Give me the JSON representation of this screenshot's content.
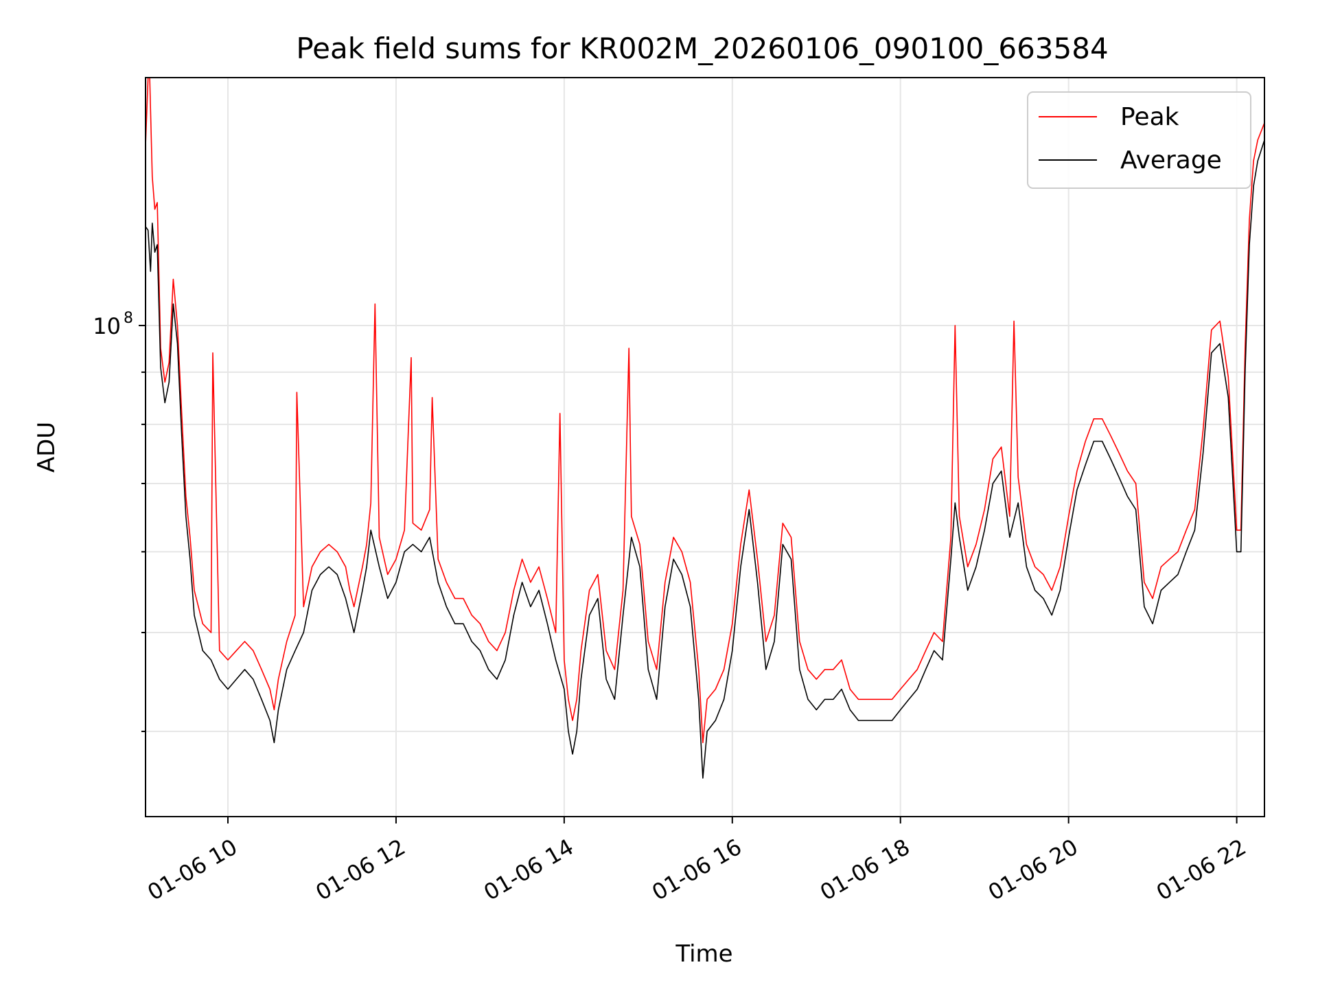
{
  "chart_data": {
    "type": "line",
    "title": "Peak field sums for KR002M_20260106_090100_663584",
    "xlabel": "Time",
    "ylabel": "ADU",
    "yscale": "log",
    "x_unit": "hours (decimal, 2026-01-06)",
    "xlim": [
      9.02,
      22.33
    ],
    "ylim": [
      33000000,
      175000000
    ],
    "x_ticks": [
      {
        "value": 10,
        "label": "01-06 10"
      },
      {
        "value": 12,
        "label": "01-06 12"
      },
      {
        "value": 14,
        "label": "01-06 14"
      },
      {
        "value": 16,
        "label": "01-06 16"
      },
      {
        "value": 18,
        "label": "01-06 18"
      },
      {
        "value": 20,
        "label": "01-06 20"
      },
      {
        "value": 22,
        "label": "01-06 22"
      }
    ],
    "y_major_ticks": [
      {
        "value": 100000000,
        "base": "10",
        "exp": "8"
      }
    ],
    "y_minor_ticks": [
      40000000,
      50000000,
      60000000,
      70000000,
      80000000,
      90000000
    ],
    "legend": {
      "position": "top-right",
      "entries": [
        "Peak",
        "Average"
      ]
    },
    "series": [
      {
        "name": "Average",
        "color": "#000000",
        "x": [
          9.02,
          9.05,
          9.08,
          9.1,
          9.13,
          9.16,
          9.2,
          9.25,
          9.3,
          9.35,
          9.4,
          9.45,
          9.5,
          9.55,
          9.6,
          9.7,
          9.8,
          9.9,
          10.0,
          10.1,
          10.2,
          10.3,
          10.4,
          10.5,
          10.55,
          10.6,
          10.7,
          10.8,
          10.9,
          11.0,
          11.1,
          11.2,
          11.3,
          11.4,
          11.45,
          11.5,
          11.6,
          11.65,
          11.7,
          11.8,
          11.9,
          12.0,
          12.1,
          12.2,
          12.3,
          12.4,
          12.5,
          12.6,
          12.7,
          12.8,
          12.9,
          13.0,
          13.1,
          13.2,
          13.3,
          13.4,
          13.5,
          13.6,
          13.7,
          13.8,
          13.9,
          14.0,
          14.05,
          14.1,
          14.15,
          14.2,
          14.3,
          14.4,
          14.5,
          14.6,
          14.7,
          14.8,
          14.9,
          15.0,
          15.1,
          15.2,
          15.3,
          15.4,
          15.5,
          15.6,
          15.65,
          15.7,
          15.8,
          15.9,
          16.0,
          16.1,
          16.2,
          16.3,
          16.4,
          16.5,
          16.6,
          16.7,
          16.8,
          16.9,
          17.0,
          17.1,
          17.2,
          17.3,
          17.4,
          17.5,
          17.6,
          17.7,
          17.8,
          17.9,
          18.0,
          18.1,
          18.2,
          18.3,
          18.4,
          18.5,
          18.6,
          18.65,
          18.7,
          18.8,
          18.9,
          19.0,
          19.1,
          19.2,
          19.3,
          19.4,
          19.5,
          19.6,
          19.7,
          19.8,
          19.9,
          20.0,
          20.1,
          20.2,
          20.3,
          20.4,
          20.5,
          20.6,
          20.7,
          20.8,
          20.9,
          21.0,
          21.1,
          21.2,
          21.3,
          21.4,
          21.5,
          21.6,
          21.7,
          21.8,
          21.9,
          22.0,
          22.05,
          22.1,
          22.15,
          22.2,
          22.25,
          22.33
        ],
        "y": [
          125000000,
          124000000,
          113000000,
          126000000,
          118000000,
          120000000,
          91000000,
          84000000,
          88000000,
          105000000,
          96000000,
          78000000,
          65000000,
          59000000,
          52000000,
          48000000,
          47000000,
          45000000,
          44000000,
          45000000,
          46000000,
          45000000,
          43000000,
          41000000,
          39000000,
          42000000,
          46000000,
          48000000,
          50000000,
          55000000,
          57000000,
          58000000,
          57000000,
          54000000,
          52000000,
          50000000,
          55000000,
          58000000,
          63000000,
          58000000,
          54000000,
          56000000,
          60000000,
          61000000,
          60000000,
          62000000,
          56000000,
          53000000,
          51000000,
          51000000,
          49000000,
          48000000,
          46000000,
          45000000,
          47000000,
          52000000,
          56000000,
          53000000,
          55000000,
          51000000,
          47000000,
          44000000,
          40000000,
          38000000,
          40000000,
          45000000,
          52000000,
          54000000,
          45000000,
          43000000,
          52000000,
          62000000,
          58000000,
          46000000,
          43000000,
          53000000,
          59000000,
          57000000,
          53000000,
          43000000,
          36000000,
          40000000,
          41000000,
          43000000,
          48000000,
          58000000,
          66000000,
          56000000,
          46000000,
          49000000,
          61000000,
          59000000,
          46000000,
          43000000,
          42000000,
          43000000,
          43000000,
          44000000,
          42000000,
          41000000,
          41000000,
          41000000,
          41000000,
          41000000,
          42000000,
          43000000,
          44000000,
          46000000,
          48000000,
          47000000,
          59000000,
          67000000,
          62000000,
          55000000,
          58000000,
          63000000,
          70000000,
          72000000,
          62000000,
          67000000,
          58000000,
          55000000,
          54000000,
          52000000,
          55000000,
          62000000,
          69000000,
          73000000,
          77000000,
          77000000,
          74000000,
          71000000,
          68000000,
          66000000,
          53000000,
          51000000,
          55000000,
          56000000,
          57000000,
          60000000,
          63000000,
          75000000,
          94000000,
          96000000,
          85000000,
          60000000,
          60000000,
          90000000,
          120000000,
          137000000,
          145000000,
          152000000
        ]
      },
      {
        "name": "Peak",
        "color": "#ff0000",
        "x": [
          9.02,
          9.05,
          9.07,
          9.1,
          9.13,
          9.16,
          9.2,
          9.25,
          9.3,
          9.35,
          9.4,
          9.45,
          9.5,
          9.55,
          9.6,
          9.7,
          9.8,
          9.82,
          9.9,
          10.0,
          10.1,
          10.2,
          10.3,
          10.4,
          10.5,
          10.55,
          10.6,
          10.7,
          10.8,
          10.82,
          10.9,
          11.0,
          11.1,
          11.2,
          11.3,
          11.4,
          11.45,
          11.5,
          11.6,
          11.65,
          11.7,
          11.75,
          11.8,
          11.9,
          12.0,
          12.1,
          12.18,
          12.2,
          12.3,
          12.4,
          12.43,
          12.5,
          12.6,
          12.7,
          12.8,
          12.9,
          13.0,
          13.1,
          13.2,
          13.3,
          13.4,
          13.5,
          13.6,
          13.7,
          13.8,
          13.9,
          13.95,
          14.0,
          14.05,
          14.1,
          14.15,
          14.2,
          14.3,
          14.4,
          14.5,
          14.6,
          14.7,
          14.77,
          14.8,
          14.9,
          15.0,
          15.1,
          15.2,
          15.3,
          15.4,
          15.5,
          15.6,
          15.65,
          15.7,
          15.8,
          15.9,
          16.0,
          16.1,
          16.2,
          16.3,
          16.4,
          16.5,
          16.6,
          16.7,
          16.8,
          16.9,
          17.0,
          17.1,
          17.2,
          17.3,
          17.4,
          17.5,
          17.6,
          17.7,
          17.8,
          17.9,
          18.0,
          18.1,
          18.2,
          18.3,
          18.4,
          18.5,
          18.6,
          18.65,
          18.7,
          18.8,
          18.9,
          19.0,
          19.1,
          19.2,
          19.3,
          19.35,
          19.4,
          19.5,
          19.6,
          19.7,
          19.8,
          19.9,
          20.0,
          20.1,
          20.2,
          20.3,
          20.4,
          20.5,
          20.6,
          20.7,
          20.8,
          20.9,
          21.0,
          21.1,
          21.2,
          21.3,
          21.4,
          21.5,
          21.6,
          21.7,
          21.8,
          21.9,
          22.0,
          22.05,
          22.1,
          22.15,
          22.2,
          22.25,
          22.33
        ],
        "y": [
          150000000,
          175000000,
          175000000,
          140000000,
          130000000,
          132000000,
          95000000,
          88000000,
          92000000,
          111000000,
          100000000,
          82000000,
          68000000,
          62000000,
          55000000,
          51000000,
          50000000,
          94000000,
          48000000,
          47000000,
          48000000,
          49000000,
          48000000,
          46000000,
          44000000,
          42000000,
          45000000,
          49000000,
          52000000,
          86000000,
          53000000,
          58000000,
          60000000,
          61000000,
          60000000,
          58000000,
          55000000,
          53000000,
          58000000,
          61000000,
          67000000,
          105000000,
          62000000,
          57000000,
          59000000,
          63000000,
          93000000,
          64000000,
          63000000,
          66000000,
          85000000,
          59000000,
          56000000,
          54000000,
          54000000,
          52000000,
          51000000,
          49000000,
          48000000,
          50000000,
          55000000,
          59000000,
          56000000,
          58000000,
          54000000,
          50000000,
          82000000,
          47000000,
          43000000,
          41000000,
          43000000,
          48000000,
          55000000,
          57000000,
          48000000,
          46000000,
          55000000,
          95000000,
          65000000,
          61000000,
          49000000,
          46000000,
          56000000,
          62000000,
          60000000,
          56000000,
          46000000,
          39000000,
          43000000,
          44000000,
          46000000,
          51000000,
          61000000,
          69000000,
          59000000,
          49000000,
          52000000,
          64000000,
          62000000,
          49000000,
          46000000,
          45000000,
          46000000,
          46000000,
          47000000,
          44000000,
          43000000,
          43000000,
          43000000,
          43000000,
          43000000,
          44000000,
          45000000,
          46000000,
          48000000,
          50000000,
          49000000,
          62000000,
          100000000,
          65000000,
          58000000,
          61000000,
          66000000,
          74000000,
          76000000,
          65000000,
          101000000,
          71000000,
          61000000,
          58000000,
          57000000,
          55000000,
          58000000,
          65000000,
          72000000,
          77000000,
          81000000,
          81000000,
          78000000,
          75000000,
          72000000,
          70000000,
          56000000,
          54000000,
          58000000,
          59000000,
          60000000,
          63000000,
          66000000,
          79000000,
          99000000,
          101000000,
          89000000,
          63000000,
          63000000,
          95000000,
          127000000,
          145000000,
          152000000,
          158000000
        ]
      }
    ]
  }
}
